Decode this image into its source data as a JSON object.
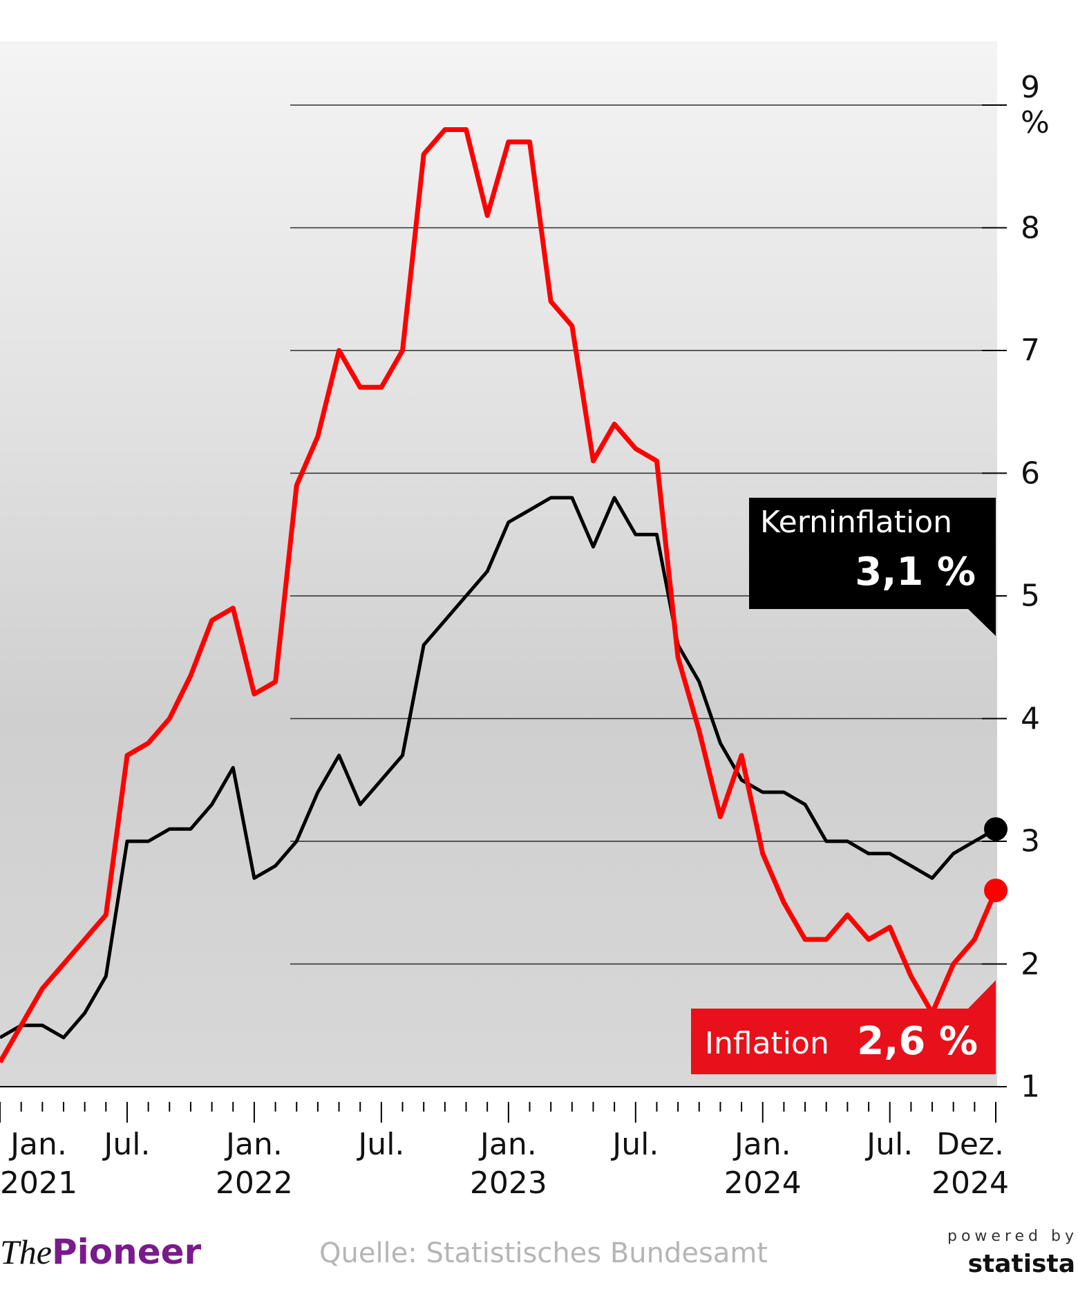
{
  "chart_data": {
    "type": "line",
    "categories": [
      "Jan.\n2021",
      null,
      null,
      null,
      null,
      null,
      "Jul.",
      null,
      null,
      null,
      null,
      null,
      "Jan.\n2022",
      null,
      null,
      null,
      null,
      null,
      "Jul.",
      null,
      null,
      null,
      null,
      null,
      "Jan.\n2023",
      null,
      null,
      null,
      null,
      null,
      "Jul.",
      null,
      null,
      null,
      null,
      null,
      "Jan.\n2024",
      null,
      null,
      null,
      null,
      null,
      "Jul.",
      null,
      null,
      null,
      null,
      "Dez.\n2024"
    ],
    "series": [
      {
        "name": "Inflation",
        "color": "#ff0000",
        "values": [
          1.2,
          1.5,
          1.8,
          2.0,
          2.2,
          2.4,
          3.7,
          3.8,
          4.0,
          4.35,
          4.8,
          4.9,
          4.2,
          4.3,
          5.9,
          6.3,
          7.0,
          6.7,
          6.7,
          7.0,
          8.6,
          8.8,
          8.8,
          8.1,
          8.7,
          8.7,
          7.4,
          7.2,
          6.1,
          6.4,
          6.2,
          6.1,
          4.5,
          3.9,
          3.2,
          3.7,
          2.9,
          2.5,
          2.2,
          2.2,
          2.4,
          2.2,
          2.3,
          1.9,
          1.6,
          2.0,
          2.2,
          2.6
        ],
        "value_labels": [
          null,
          null,
          null,
          null,
          null,
          null,
          null,
          null,
          null,
          null,
          null,
          null,
          null,
          null,
          null,
          null,
          null,
          null,
          null,
          null,
          null,
          null,
          null,
          null,
          null,
          null,
          null,
          null,
          null,
          null,
          null,
          null,
          null,
          null,
          null,
          null,
          null,
          null,
          null,
          null,
          null,
          null,
          null,
          null,
          null,
          null,
          null,
          "2,6 %"
        ]
      },
      {
        "name": "Kerninflation",
        "color": "#000000",
        "values": [
          1.4,
          1.5,
          1.5,
          1.4,
          1.6,
          1.9,
          3.0,
          3.0,
          3.1,
          3.1,
          3.3,
          3.6,
          2.7,
          2.8,
          3.0,
          3.4,
          3.7,
          3.3,
          3.5,
          3.7,
          4.6,
          4.8,
          5.0,
          5.2,
          5.6,
          5.7,
          5.8,
          5.8,
          5.4,
          5.8,
          5.5,
          5.5,
          4.6,
          4.3,
          3.8,
          3.5,
          3.4,
          3.4,
          3.3,
          3.0,
          3.0,
          2.9,
          2.9,
          2.8,
          2.7,
          2.9,
          3.0,
          3.1
        ],
        "value_labels": [
          null,
          null,
          null,
          null,
          null,
          null,
          null,
          null,
          null,
          null,
          null,
          null,
          null,
          null,
          null,
          null,
          null,
          null,
          null,
          null,
          null,
          null,
          null,
          null,
          null,
          null,
          null,
          null,
          null,
          null,
          null,
          null,
          null,
          null,
          null,
          null,
          null,
          null,
          null,
          null,
          null,
          null,
          null,
          null,
          null,
          null,
          null,
          "3,1 %"
        ]
      }
    ],
    "ylim": [
      1,
      9
    ],
    "yticks": [
      1,
      2,
      3,
      4,
      5,
      6,
      7,
      8,
      {
        "value": 9,
        "label": "9 %"
      }
    ],
    "grid": true,
    "source": "Quelle: Statistisches Bundesamt",
    "logo": {
      "the": "The",
      "pioneer": "Pioneer"
    },
    "powered_by": {
      "line1": "powered by",
      "line2": "statista"
    }
  }
}
